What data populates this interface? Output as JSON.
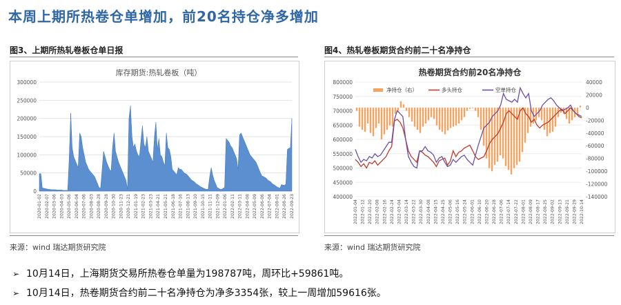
{
  "title": "本周上期所热卷仓单增加，前20名持仓净多增加",
  "left_panel": {
    "figure_title": "图3、上期所热轧卷板仓单日报",
    "source": "来源：wind   瑞达期货研究院"
  },
  "right_panel": {
    "figure_title": "图4、热轧卷板期货合约前二十名净持仓",
    "source": "来源：wind   瑞达期货研究院"
  },
  "bullets": [
    "10月14日，上海期货交易所热卷仓单量为198787吨，周环比+59861吨。",
    "10月14日，热卷期货合约前二十名净持仓为净多3354张，较上一周增加59616张。"
  ],
  "colors": {
    "title": "#2f67a6",
    "area": "#5b8fcf",
    "area_edge": "#3f75be",
    "bars": "#f4a460",
    "long": "#c0392b",
    "short": "#6a4fa3"
  },
  "chart_data": [
    {
      "type": "area",
      "title": "库存期货:热轧卷板（吨）",
      "ylim": [
        0,
        300000
      ],
      "yticks": [
        0,
        50000,
        100000,
        150000,
        200000,
        250000,
        300000
      ],
      "xticks": [
        "2020-01-02",
        "2020-02-07",
        "2020-03-06",
        "2020-04-03",
        "2020-05-06",
        "2020-06-04",
        "2020-07-06",
        "2020-08-03",
        "2020-08-28",
        "2020-09-28",
        "2020-10-30",
        "2020-11-23",
        "2020-12-21",
        "2021-01-19",
        "2021-02-23",
        "2021-03-23",
        "2021-04-21",
        "2021-05-21",
        "2021-06-18",
        "2021-07-16",
        "2021-08-13",
        "2021-09-10",
        "2021-10-15",
        "2021-11-11",
        "2021-12-09",
        "2022-01-06",
        "2022-02-11",
        "2022-03-11",
        "2022-04-08",
        "2022-05-09",
        "2022-06-06",
        "2022-07-04",
        "2022-08-01",
        "2022-08-26",
        "2022-09-23"
      ],
      "values": [
        48000,
        48000,
        9000,
        8000,
        7000,
        6000,
        5000,
        5000,
        4000,
        4000,
        4000,
        4000,
        3000,
        3000,
        3000,
        3000,
        2000,
        2000,
        2000,
        2000,
        90000,
        215000,
        120000,
        95000,
        85000,
        75000,
        65000,
        160000,
        150000,
        120000,
        100000,
        80000,
        70000,
        60000,
        55000,
        50000,
        45000,
        40000,
        30000,
        20000,
        10000,
        8000,
        60000,
        110000,
        95000,
        80000,
        70000,
        60000,
        55000,
        120000,
        160000,
        110000,
        95000,
        80000,
        70000,
        60000,
        50000,
        40000,
        30000,
        5000,
        200000,
        235000,
        150000,
        120000,
        130000,
        110000,
        100000,
        95000,
        140000,
        180000,
        130000,
        120000,
        150000,
        110000,
        100000,
        90000,
        80000,
        150000,
        190000,
        115000,
        145000,
        100000,
        95000,
        80000,
        70000,
        160000,
        120000,
        115000,
        95000,
        60000,
        55000,
        50000,
        45000,
        65000,
        60000,
        60000,
        55000,
        50000,
        48000,
        45000,
        40000,
        35000,
        30000,
        28000,
        25000,
        20000,
        18000,
        15000,
        12000,
        10000,
        8000,
        6000,
        5000,
        5000,
        40000,
        65000,
        45000,
        30000,
        20000,
        10000,
        8000,
        5000,
        5000,
        8000,
        10000,
        145000,
        140000,
        135000,
        125000,
        120000,
        110000,
        100000,
        90000,
        60000,
        155000,
        160000,
        150000,
        140000,
        130000,
        120000,
        110000,
        100000,
        95000,
        90000,
        85000,
        80000,
        70000,
        60000,
        50000,
        42000,
        40000,
        38000,
        35000,
        30000,
        28000,
        25000,
        20000,
        18000,
        15000,
        12000,
        10000,
        8000,
        18000,
        17000,
        16000,
        20000,
        115000,
        118000,
        119000,
        200000
      ]
    },
    {
      "type": "bar+line",
      "title": "热卷期货合约前20名净持仓",
      "legend": [
        "净持仓（右）",
        "多头持仓",
        "空单持仓"
      ],
      "ylim_left": [
        400000,
        800000
      ],
      "yticks_left": [
        400000,
        450000,
        500000,
        550000,
        600000,
        650000,
        700000,
        750000,
        800000
      ],
      "ylim_right": [
        -140000,
        40000
      ],
      "yticks_right": [
        40000,
        20000,
        0,
        -20000,
        -40000,
        -60000,
        -80000,
        -100000,
        -120000,
        -140000
      ],
      "xticks": [
        "2022-01-04",
        "2022-01-12",
        "2022-01-20",
        "2022-02-08",
        "2022-02-16",
        "2022-02-24",
        "2022-03-04",
        "2022-03-14",
        "2022-03-22",
        "2022-03-30",
        "2022-04-08",
        "2022-04-15",
        "2022-04-25",
        "2022-05-06",
        "2022-05-16",
        "2022-05-24",
        "2022-06-01",
        "2022-06-10",
        "2022-06-20",
        "2022-06-28",
        "2022-07-06",
        "2022-07-14",
        "2022-07-22",
        "2022-08-01",
        "2022-08-09",
        "2022-08-17",
        "2022-08-25",
        "2022-09-02",
        "2022-09-13",
        "2022-09-21",
        "2022-09-29",
        "2022-10-14"
      ],
      "net_positions": [
        -5000,
        -30000,
        -35000,
        -38000,
        -25000,
        -40000,
        -45000,
        -32000,
        -25000,
        -50000,
        -42000,
        -35000,
        -28000,
        -30000,
        -10000,
        -5000,
        10000,
        5000,
        -5000,
        -15000,
        -22000,
        -30000,
        -35000,
        -40000,
        -30000,
        -25000,
        -20000,
        -15000,
        -18000,
        -28000,
        -35000,
        -38000,
        -42000,
        -36000,
        -32000,
        -30000,
        -28000,
        -25000,
        -20000,
        -15000,
        -5000,
        -2000,
        -1000,
        -5000,
        -15000,
        -35000,
        -60000,
        -80000,
        -95000,
        -100000,
        -90000,
        -85000,
        -75000,
        -80000,
        -92000,
        -98000,
        -105000,
        -95000,
        -90000,
        -85000,
        -70000,
        -55000,
        -40000,
        -30000,
        -25000,
        -20000,
        -15000,
        -20000,
        -35000,
        -45000,
        -40000,
        -38000,
        -30000,
        -15000,
        -8000,
        -10000,
        -18000,
        -25000,
        -20000,
        -15000,
        -10000,
        3000
      ],
      "long_positions": [
        530000,
        520000,
        505000,
        515000,
        500000,
        520000,
        515000,
        525000,
        510000,
        520000,
        530000,
        540000,
        560000,
        575000,
        665000,
        670000,
        660000,
        640000,
        600000,
        560000,
        540000,
        530000,
        520000,
        560000,
        555000,
        545000,
        540000,
        530000,
        520000,
        505000,
        525000,
        530000,
        535000,
        510000,
        525000,
        560000,
        540000,
        555000,
        560000,
        570000,
        575000,
        580000,
        560000,
        540000,
        530000,
        535000,
        540000,
        560000,
        585000,
        600000,
        610000,
        620000,
        640000,
        660000,
        690000,
        700000,
        690000,
        680000,
        670000,
        700000,
        710000,
        690000,
        680000,
        660000,
        670000,
        650000,
        640000,
        650000,
        655000,
        660000,
        670000,
        680000,
        690000,
        700000,
        705000,
        690000,
        700000,
        710000,
        700000,
        690000,
        680000,
        675000
      ],
      "short_positions": [
        565000,
        540000,
        520000,
        530000,
        525000,
        540000,
        535000,
        550000,
        540000,
        545000,
        560000,
        575000,
        590000,
        590000,
        670000,
        700000,
        690000,
        680000,
        600000,
        540000,
        520000,
        505000,
        500000,
        560000,
        560000,
        575000,
        560000,
        555000,
        545000,
        520000,
        535000,
        540000,
        520000,
        505000,
        510000,
        530000,
        520000,
        530000,
        540000,
        545000,
        530000,
        520000,
        510000,
        545000,
        580000,
        610000,
        640000,
        650000,
        660000,
        680000,
        690000,
        700000,
        720000,
        760000,
        740000,
        735000,
        730000,
        740000,
        730000,
        780000,
        760000,
        745000,
        760000,
        700000,
        680000,
        690000,
        700000,
        720000,
        730000,
        740000,
        745000,
        735000,
        720000,
        710000,
        700000,
        705000,
        710000,
        720000,
        700000,
        690000,
        685000,
        680000
      ]
    }
  ]
}
